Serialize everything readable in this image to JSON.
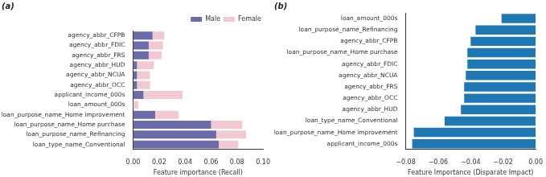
{
  "chart_data": [
    {
      "type": "bar",
      "title": "(a)",
      "orientation": "horizontal",
      "stacked": true,
      "grid": false,
      "legend": "upper right",
      "x_label": "Feature importance (Recall)",
      "categories": [
        "agency_abbr_CFPB",
        "agency_abbr_FDIC",
        "agency_abbr_FRS",
        "agency_abbr_HUD",
        "agency_abbr_NCUA",
        "agency_abbr_OCC",
        "applicant_income_000s",
        "loan_amount_000s",
        "loan_purpose_name_Home improvement",
        "loan_purpose_name_Home purchase",
        "loan_purpose_name_Refinancing",
        "loan_type_name_Conventional"
      ],
      "series": [
        {
          "name": "Male",
          "color": "#6b6baa",
          "values": [
            0.015,
            0.012,
            0.012,
            0.003,
            0.003,
            0.003,
            0.008,
            0.0,
            0.017,
            0.06,
            0.064,
            0.066
          ]
        },
        {
          "name": "Female",
          "color": "#f2c9d2",
          "values": [
            0.009,
            0.011,
            0.01,
            0.013,
            0.01,
            0.01,
            0.03,
            0.004,
            0.018,
            0.024,
            0.023,
            0.015
          ]
        }
      ],
      "xlim": [
        0,
        0.1
      ],
      "xticks": [
        {
          "value": 0,
          "label": "0.00"
        },
        {
          "value": 0.02,
          "label": "0.02"
        },
        {
          "value": 0.04,
          "label": "0.04"
        },
        {
          "value": 0.06,
          "label": "0.06"
        },
        {
          "value": 0.08,
          "label": "0.08"
        },
        {
          "value": 0.1,
          "label": "0.10"
        }
      ]
    },
    {
      "type": "bar",
      "title": "(b)",
      "orientation": "horizontal",
      "grid": false,
      "x_label": "Feature Importance (Disparate Impact)",
      "categories": [
        "loan_amount_000s",
        "loan_purpose_name_Refinancing",
        "agency_abbr_CFPB",
        "loan_purpose_name_Home purchase",
        "agency_abbr_FDIC",
        "agency_abbr_NCUA",
        "agency_abbr_FRS",
        "agency_abbr_OCC",
        "agency_abbr_HUD",
        "loan_type_name_Conventional",
        "loan_purpose_name_Home improvement",
        "applicant_income_000s"
      ],
      "series": [
        {
          "name": "Disparate Impact",
          "color": "#1f77b4",
          "values": [
            -0.021,
            -0.037,
            -0.04,
            -0.042,
            -0.042,
            -0.043,
            -0.044,
            -0.044,
            -0.046,
            -0.056,
            -0.075,
            -0.076
          ]
        }
      ],
      "xlim": [
        -0.08,
        0
      ],
      "xticks": [
        {
          "value": -0.08,
          "label": "−0.08"
        },
        {
          "value": -0.06,
          "label": "−0.06"
        },
        {
          "value": -0.04,
          "label": "−0.04"
        },
        {
          "value": -0.02,
          "label": "−0.02"
        },
        {
          "value": 0,
          "label": "0.00"
        }
      ]
    }
  ]
}
